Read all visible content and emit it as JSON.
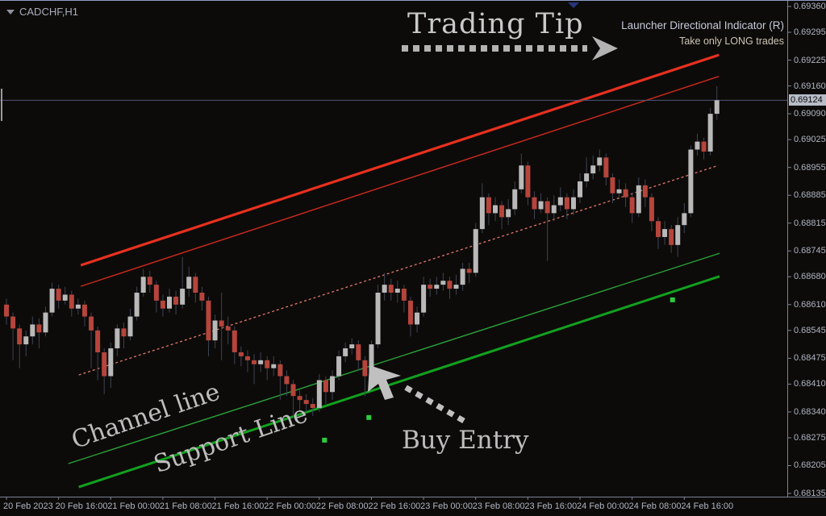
{
  "window": {
    "symbol_label": "CADCHF,H1"
  },
  "annotations": {
    "trading_tip": "Trading Tip",
    "indicator_name": "Launcher Directional Indicator (R)",
    "indicator_tip": "Take only LONG trades",
    "channel_line_label": "Channel line",
    "support_line_label": "Support Line",
    "buy_entry_label": "Buy Entry"
  },
  "colors": {
    "background": "#0d0b09",
    "bull_candle": "#b9b9b9",
    "bear_candle": "#b5453c",
    "wick": "#3c4456",
    "current_price_line": "#4c5878",
    "axis_text": "#aeb4c2",
    "resistance_outer": "#e8301f",
    "resistance_inner": "#cf2a1c",
    "midline_dotted": "#e2786c",
    "channel_green": "#2aa339",
    "support_green": "#12a11f",
    "buy_dot": "#2ecc40",
    "annotation_gray": "#bdbdbd"
  },
  "price_axis": {
    "labels": [
      "0.69360",
      "0.69295",
      "0.69225",
      "0.69160",
      "0.69090",
      "0.69025",
      "0.68955",
      "0.68885",
      "0.68815",
      "0.68745",
      "0.68680",
      "0.68610",
      "0.68545",
      "0.68475",
      "0.68410",
      "0.68340",
      "0.68275",
      "0.68205",
      "0.68135"
    ],
    "current_price": "0.69124"
  },
  "time_axis": {
    "labels": [
      {
        "label": "20 Feb 2023",
        "bar": 0
      },
      {
        "label": "20 Feb 16:00",
        "bar": 8
      },
      {
        "label": "21 Feb 00:00",
        "bar": 16
      },
      {
        "label": "21 Feb 08:00",
        "bar": 24
      },
      {
        "label": "21 Feb 16:00",
        "bar": 32
      },
      {
        "label": "22 Feb 00:00",
        "bar": 40
      },
      {
        "label": "22 Feb 08:00",
        "bar": 48
      },
      {
        "label": "22 Feb 16:00",
        "bar": 56
      },
      {
        "label": "23 Feb 00:00",
        "bar": 64
      },
      {
        "label": "23 Feb 08:00",
        "bar": 72
      },
      {
        "label": "23 Feb 16:00",
        "bar": 80
      },
      {
        "label": "24 Feb 00:00",
        "bar": 88
      },
      {
        "label": "24 Feb 08:00",
        "bar": 96
      },
      {
        "label": "24 Feb 16:00",
        "bar": 104
      }
    ]
  },
  "chart_data": {
    "type": "candlestick",
    "symbol": "CADCHF",
    "timeframe": "H1",
    "title": "CADCHF,H1",
    "ylim": [
      0.68135,
      0.6936
    ],
    "first_bar_time": "20 Feb 08:00",
    "bar_interval_hours": 1,
    "current_price": 0.69124,
    "grid": false,
    "candles": [
      [
        0.6861,
        0.68625,
        0.6856,
        0.6858
      ],
      [
        0.6858,
        0.6859,
        0.6847,
        0.6855
      ],
      [
        0.6855,
        0.6856,
        0.6845,
        0.6851
      ],
      [
        0.6851,
        0.68545,
        0.6848,
        0.6853
      ],
      [
        0.6853,
        0.6858,
        0.6851,
        0.6856
      ],
      [
        0.6856,
        0.68575,
        0.685,
        0.6854
      ],
      [
        0.6854,
        0.68605,
        0.6853,
        0.6859
      ],
      [
        0.6859,
        0.68665,
        0.6858,
        0.6865
      ],
      [
        0.6865,
        0.6866,
        0.686,
        0.6862
      ],
      [
        0.6862,
        0.68655,
        0.6861,
        0.68635
      ],
      [
        0.68635,
        0.68645,
        0.6858,
        0.686
      ],
      [
        0.686,
        0.68625,
        0.68585,
        0.6861
      ],
      [
        0.6861,
        0.6862,
        0.68555,
        0.6858
      ],
      [
        0.6858,
        0.6859,
        0.6845,
        0.68545
      ],
      [
        0.68545,
        0.68555,
        0.6842,
        0.6849
      ],
      [
        0.6849,
        0.685,
        0.68385,
        0.6843
      ],
      [
        0.6843,
        0.68515,
        0.684,
        0.685
      ],
      [
        0.685,
        0.6856,
        0.6848,
        0.6855
      ],
      [
        0.6855,
        0.68565,
        0.685,
        0.6853
      ],
      [
        0.6853,
        0.686,
        0.6852,
        0.6858
      ],
      [
        0.6858,
        0.68655,
        0.6857,
        0.6864
      ],
      [
        0.6864,
        0.687,
        0.6863,
        0.6868
      ],
      [
        0.6868,
        0.68695,
        0.6864,
        0.6866
      ],
      [
        0.6866,
        0.6867,
        0.6859,
        0.6862
      ],
      [
        0.6862,
        0.68635,
        0.6858,
        0.686
      ],
      [
        0.686,
        0.6865,
        0.6859,
        0.6863
      ],
      [
        0.6863,
        0.68645,
        0.68585,
        0.6861
      ],
      [
        0.6861,
        0.6873,
        0.686,
        0.6865
      ],
      [
        0.6865,
        0.68705,
        0.6863,
        0.6868
      ],
      [
        0.6868,
        0.6869,
        0.68615,
        0.6864
      ],
      [
        0.6864,
        0.68655,
        0.68595,
        0.6862
      ],
      [
        0.6862,
        0.6863,
        0.6848,
        0.6852
      ],
      [
        0.6852,
        0.68585,
        0.685,
        0.6857
      ],
      [
        0.6857,
        0.6864,
        0.6847,
        0.68555
      ],
      [
        0.68555,
        0.6858,
        0.6851,
        0.68545
      ],
      [
        0.68545,
        0.68555,
        0.6846,
        0.6849
      ],
      [
        0.6849,
        0.68505,
        0.68455,
        0.6848
      ],
      [
        0.6848,
        0.68495,
        0.6844,
        0.6847
      ],
      [
        0.6847,
        0.68485,
        0.6841,
        0.6846
      ],
      [
        0.6846,
        0.6849,
        0.6844,
        0.6847
      ],
      [
        0.6847,
        0.6848,
        0.6842,
        0.6845
      ],
      [
        0.6845,
        0.6848,
        0.6843,
        0.6846
      ],
      [
        0.6846,
        0.6847,
        0.6837,
        0.6843
      ],
      [
        0.6843,
        0.68445,
        0.6838,
        0.6841
      ],
      [
        0.6841,
        0.6842,
        0.68325,
        0.6838
      ],
      [
        0.6838,
        0.68395,
        0.6834,
        0.6837
      ],
      [
        0.6837,
        0.68385,
        0.6834,
        0.6836
      ],
      [
        0.6836,
        0.68375,
        0.6833,
        0.6835
      ],
      [
        0.6835,
        0.68435,
        0.6834,
        0.6842
      ],
      [
        0.6842,
        0.6843,
        0.6836,
        0.6839
      ],
      [
        0.6839,
        0.68445,
        0.6837,
        0.6843
      ],
      [
        0.6843,
        0.68495,
        0.6842,
        0.6848
      ],
      [
        0.6848,
        0.68515,
        0.68465,
        0.685
      ],
      [
        0.685,
        0.68525,
        0.68485,
        0.6851
      ],
      [
        0.6851,
        0.6852,
        0.68445,
        0.6847
      ],
      [
        0.6847,
        0.6848,
        0.6838,
        0.6843
      ],
      [
        0.6843,
        0.6852,
        0.684,
        0.6851
      ],
      [
        0.6851,
        0.6866,
        0.685,
        0.6864
      ],
      [
        0.6864,
        0.6869,
        0.6862,
        0.6866
      ],
      [
        0.6866,
        0.68675,
        0.6862,
        0.6864
      ],
      [
        0.6864,
        0.6867,
        0.68615,
        0.6865
      ],
      [
        0.6865,
        0.6866,
        0.6859,
        0.6862
      ],
      [
        0.6862,
        0.6863,
        0.6853,
        0.6856
      ],
      [
        0.6856,
        0.68605,
        0.6854,
        0.6859
      ],
      [
        0.6859,
        0.6868,
        0.6858,
        0.6866
      ],
      [
        0.6866,
        0.68675,
        0.6863,
        0.6865
      ],
      [
        0.6865,
        0.6868,
        0.68635,
        0.6866
      ],
      [
        0.6866,
        0.6869,
        0.68645,
        0.6867
      ],
      [
        0.6867,
        0.6868,
        0.68625,
        0.6865
      ],
      [
        0.6865,
        0.68685,
        0.68635,
        0.6866
      ],
      [
        0.6866,
        0.68715,
        0.68645,
        0.687
      ],
      [
        0.687,
        0.68715,
        0.68665,
        0.6869
      ],
      [
        0.6869,
        0.68815,
        0.6868,
        0.688
      ],
      [
        0.688,
        0.68915,
        0.6879,
        0.6888
      ],
      [
        0.6888,
        0.6889,
        0.6881,
        0.6884
      ],
      [
        0.6884,
        0.6888,
        0.6882,
        0.6886
      ],
      [
        0.6886,
        0.6887,
        0.688,
        0.6883
      ],
      [
        0.6883,
        0.68875,
        0.6881,
        0.6885
      ],
      [
        0.6885,
        0.6892,
        0.68835,
        0.689
      ],
      [
        0.689,
        0.6899,
        0.6889,
        0.6896
      ],
      [
        0.6896,
        0.6897,
        0.6886,
        0.6888
      ],
      [
        0.6888,
        0.68895,
        0.68825,
        0.6885
      ],
      [
        0.6885,
        0.6889,
        0.6884,
        0.6887
      ],
      [
        0.6887,
        0.6888,
        0.6872,
        0.6884
      ],
      [
        0.6884,
        0.68885,
        0.6882,
        0.6886
      ],
      [
        0.6886,
        0.68905,
        0.68845,
        0.6888
      ],
      [
        0.6888,
        0.6889,
        0.68825,
        0.6885
      ],
      [
        0.6885,
        0.689,
        0.68835,
        0.6888
      ],
      [
        0.6888,
        0.6894,
        0.68865,
        0.6892
      ],
      [
        0.6892,
        0.6898,
        0.68905,
        0.6894
      ],
      [
        0.6894,
        0.68985,
        0.68925,
        0.6896
      ],
      [
        0.6896,
        0.69,
        0.68945,
        0.6898
      ],
      [
        0.6898,
        0.6899,
        0.6891,
        0.6893
      ],
      [
        0.6893,
        0.6894,
        0.68865,
        0.6889
      ],
      [
        0.6889,
        0.68925,
        0.68875,
        0.689
      ],
      [
        0.689,
        0.68915,
        0.68855,
        0.6888
      ],
      [
        0.6888,
        0.6889,
        0.68815,
        0.6884
      ],
      [
        0.6884,
        0.6893,
        0.6883,
        0.6891
      ],
      [
        0.6891,
        0.68925,
        0.68855,
        0.6888
      ],
      [
        0.6888,
        0.6889,
        0.68795,
        0.6882
      ],
      [
        0.6882,
        0.6883,
        0.6875,
        0.6878
      ],
      [
        0.6878,
        0.6882,
        0.6876,
        0.688
      ],
      [
        0.688,
        0.6881,
        0.6874,
        0.6876
      ],
      [
        0.6876,
        0.6883,
        0.6873,
        0.6881
      ],
      [
        0.6881,
        0.68865,
        0.6879,
        0.6884
      ],
      [
        0.6884,
        0.6901,
        0.6883,
        0.69
      ],
      [
        0.69,
        0.6904,
        0.68985,
        0.6902
      ],
      [
        0.6902,
        0.6903,
        0.68975,
        0.68995
      ],
      [
        0.68995,
        0.69105,
        0.68985,
        0.6909
      ],
      [
        0.6909,
        0.6916,
        0.69075,
        0.69124
      ]
    ],
    "lines": [
      {
        "name": "resistance-channel-outer",
        "style": "solid",
        "width": 3.2,
        "color": "#e8301f",
        "from": {
          "bar": 11.4,
          "price": 0.68709
        },
        "to": {
          "bar": 109.3,
          "price": 0.69238
        }
      },
      {
        "name": "resistance-channel-inner",
        "style": "solid",
        "width": 1.4,
        "color": "#cf2a1c",
        "from": {
          "bar": 11.4,
          "price": 0.68656
        },
        "to": {
          "bar": 109.3,
          "price": 0.69184
        }
      },
      {
        "name": "channel-midline-dotted",
        "style": "dashed",
        "width": 1.3,
        "color": "#e2786c",
        "from": {
          "bar": 11.1,
          "price": 0.68433
        },
        "to": {
          "bar": 109.2,
          "price": 0.6896
        }
      },
      {
        "name": "channel-line-green",
        "style": "solid",
        "width": 1.4,
        "color": "#2aa339",
        "from": {
          "bar": 9.5,
          "price": 0.6821
        },
        "to": {
          "bar": 109.4,
          "price": 0.68739
        }
      },
      {
        "name": "support-line-green",
        "style": "solid",
        "width": 3,
        "color": "#12a11f",
        "from": {
          "bar": 11.1,
          "price": 0.68151
        },
        "to": {
          "bar": 109.4,
          "price": 0.68681
        }
      }
    ],
    "buy_signals": [
      {
        "bar": 48.8,
        "price": 0.68269
      },
      {
        "bar": 55.6,
        "price": 0.68326
      },
      {
        "bar": 102.2,
        "price": 0.68622
      }
    ],
    "legend_position": "none"
  }
}
